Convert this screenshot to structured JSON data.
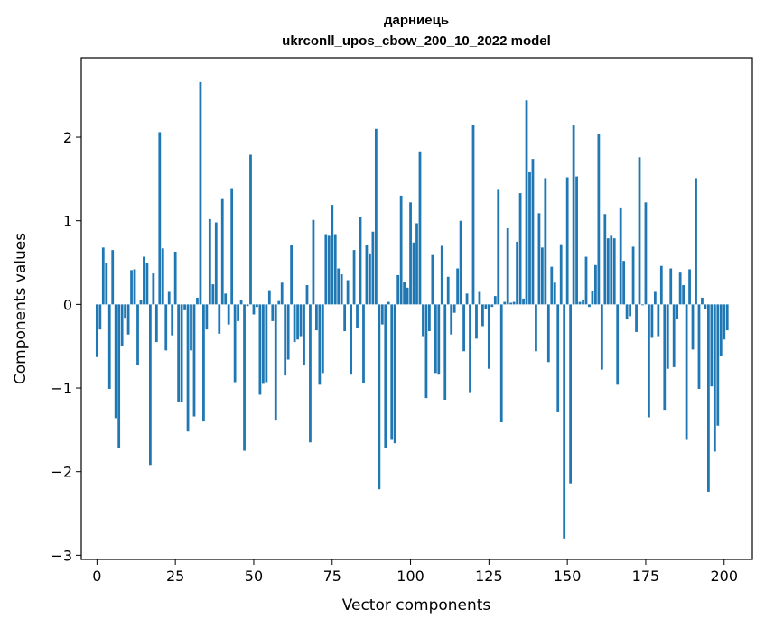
{
  "chart_data": {
    "type": "bar",
    "title_line1": "дарниець",
    "title_line2": "ukrconll_upos_cbow_200_10_2022 model",
    "xlabel": "Vector components",
    "ylabel": "Components values",
    "xlim": [
      -5,
      209
    ],
    "ylim": [
      -3.05,
      2.95
    ],
    "xticks": [
      0,
      25,
      50,
      75,
      100,
      125,
      150,
      175,
      200
    ],
    "xtick_labels": [
      "0",
      "25",
      "50",
      "75",
      "100",
      "125",
      "150",
      "175",
      "200"
    ],
    "yticks": [
      -3,
      -2,
      -1,
      0,
      1,
      2
    ],
    "ytick_labels": [
      "−3",
      "−2",
      "−1",
      "0",
      "1",
      "2"
    ],
    "grid": false,
    "legend": "none",
    "bar_color": "#1f77b4",
    "values": [
      -0.63,
      -0.3,
      0.68,
      0.5,
      -1.01,
      0.65,
      -1.36,
      -1.72,
      -0.5,
      -0.16,
      -0.36,
      0.41,
      0.42,
      -0.73,
      0.05,
      0.57,
      0.5,
      -1.92,
      0.37,
      -0.45,
      2.06,
      0.67,
      -0.55,
      0.15,
      -0.37,
      0.63,
      -1.17,
      -1.17,
      -0.07,
      -1.52,
      -0.55,
      -1.34,
      0.08,
      2.66,
      -1.4,
      -0.3,
      1.02,
      0.24,
      0.98,
      -0.35,
      1.27,
      0.13,
      -0.24,
      1.39,
      -0.93,
      -0.2,
      0.05,
      -1.75,
      -0.02,
      1.79,
      -0.12,
      -0.03,
      -1.08,
      -0.95,
      -0.93,
      0.17,
      -0.2,
      -1.39,
      0.04,
      0.26,
      -0.85,
      -0.66,
      0.71,
      -0.45,
      -0.42,
      -0.38,
      -0.73,
      0.23,
      -1.65,
      1.01,
      -0.31,
      -0.96,
      -0.82,
      0.84,
      0.82,
      1.19,
      0.84,
      0.43,
      0.36,
      -0.32,
      0.29,
      -0.84,
      0.65,
      -0.28,
      1.04,
      -0.94,
      0.71,
      0.61,
      0.87,
      2.1,
      -2.21,
      -0.24,
      -1.72,
      0.03,
      -1.62,
      -1.66,
      0.35,
      1.3,
      0.27,
      0.2,
      1.22,
      0.74,
      0.97,
      1.83,
      -0.38,
      -1.12,
      -0.32,
      0.59,
      -0.82,
      -0.84,
      0.7,
      -1.14,
      0.33,
      -0.36,
      -0.1,
      0.43,
      1.0,
      -0.56,
      0.13,
      -1.06,
      2.15,
      -0.41,
      0.15,
      -0.26,
      -0.05,
      -0.77,
      -0.03,
      0.1,
      1.37,
      -1.41,
      0.03,
      0.91,
      0.02,
      0.03,
      0.75,
      1.33,
      0.07,
      2.44,
      1.58,
      1.74,
      -0.56,
      1.09,
      0.68,
      1.51,
      -0.69,
      0.45,
      0.26,
      -1.29,
      0.72,
      -2.8,
      1.52,
      -2.14,
      2.14,
      1.53,
      0.03,
      0.05,
      0.57,
      -0.03,
      0.16,
      0.47,
      2.04,
      -0.78,
      1.08,
      0.79,
      0.82,
      0.79,
      -0.96,
      1.16,
      0.52,
      -0.18,
      -0.14,
      0.69,
      -0.33,
      1.76,
      -0.01,
      1.22,
      -1.35,
      -0.4,
      0.15,
      -0.38,
      0.46,
      -1.26,
      -0.77,
      0.43,
      -0.75,
      -0.17,
      0.38,
      0.23,
      -1.62,
      0.42,
      -0.54,
      1.51,
      -1.01,
      0.08,
      -0.05,
      -2.24,
      -0.98,
      -1.76,
      -1.45,
      -0.62,
      -0.42,
      -0.31
    ]
  }
}
